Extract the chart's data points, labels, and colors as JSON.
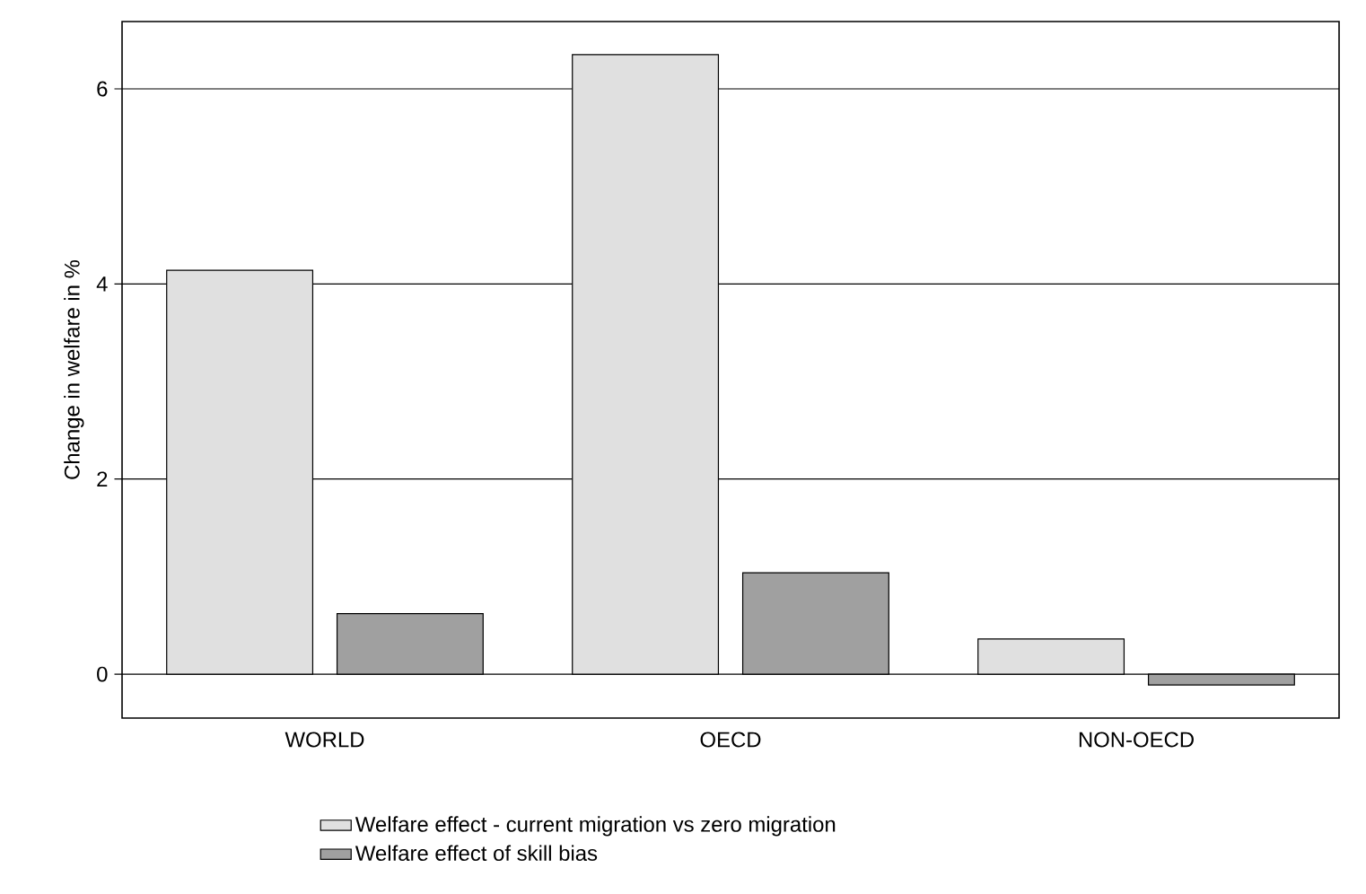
{
  "chart_data": {
    "type": "bar",
    "ylabel": "Change in welfare in %",
    "categories": [
      "WORLD",
      "OECD",
      "NON-OECD"
    ],
    "series": [
      {
        "name": "Welfare effect - current migration vs zero migration",
        "color": "#e0e0e0",
        "values": [
          4.14,
          6.35,
          0.36
        ]
      },
      {
        "name": "Welfare effect of skill bias",
        "color": "#a0a0a0",
        "values": [
          0.62,
          1.04,
          -0.11
        ]
      }
    ],
    "ylim": [
      -0.45,
      6.69
    ],
    "yticks": [
      0,
      2,
      4,
      6
    ],
    "grid": "y",
    "legend": "bottom"
  }
}
